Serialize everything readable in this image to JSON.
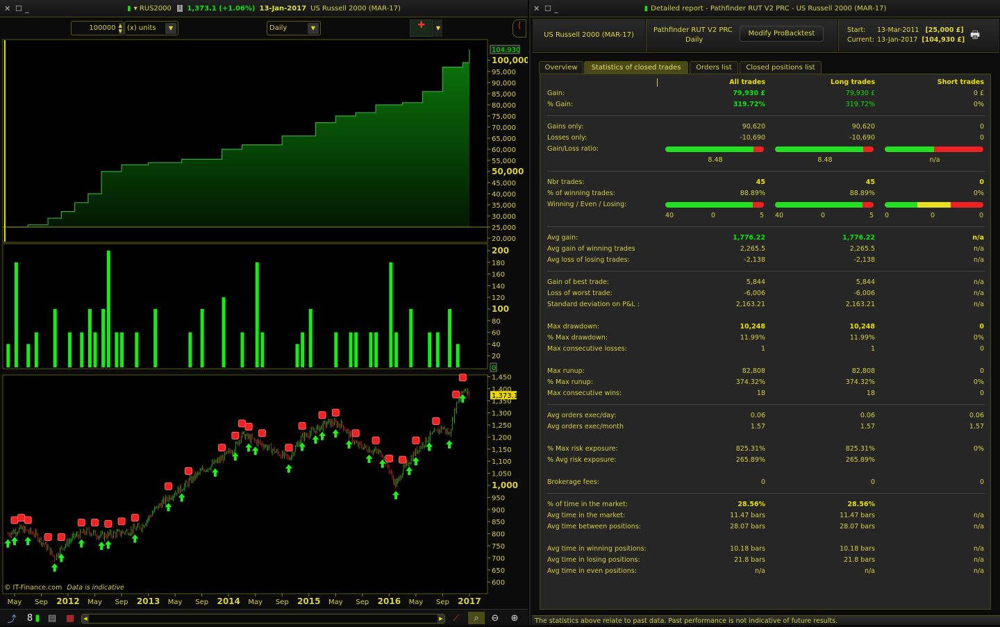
{
  "left_window": {
    "symbol": "RUS2000",
    "price_change": "1,373.1 (+1.06%)",
    "date": "13-Jan-2017",
    "instrument": "US Russell 2000 (MAR-17)",
    "quantity": "100000",
    "units": "(x) units",
    "period": "Daily",
    "copyright": "© IT-Finance.com",
    "disclaimer": "Data is indicative"
  },
  "equity_axis": {
    "ticks": [
      "20,000",
      "25,000",
      "30,000",
      "35,000",
      "40,000",
      "45,000",
      "50,000",
      "55,000",
      "60,000",
      "65,000",
      "70,000",
      "75,000",
      "80,000",
      "85,000",
      "90,000",
      "95,000",
      "100,000"
    ],
    "tick_values": [
      20000,
      25000,
      30000,
      35000,
      40000,
      45000,
      50000,
      55000,
      60000,
      65000,
      70000,
      75000,
      80000,
      85000,
      90000,
      95000,
      100000
    ],
    "current_label": "104,930",
    "current_value": 104930
  },
  "hist_axis": {
    "ticks": [
      "20",
      "40",
      "60",
      "80",
      "100",
      "120",
      "140",
      "160",
      "180",
      "200"
    ],
    "tick_values": [
      20,
      40,
      60,
      80,
      100,
      120,
      140,
      160,
      180,
      200
    ],
    "zero_label": "0"
  },
  "price_axis": {
    "ticks": [
      "600",
      "650",
      "700",
      "750",
      "800",
      "850",
      "900",
      "950",
      "1,000",
      "1,050",
      "1,100",
      "1,150",
      "1,200",
      "1,250",
      "1,300",
      "1,350",
      "1,400",
      "1,450"
    ],
    "tick_values": [
      600,
      650,
      700,
      750,
      800,
      850,
      900,
      950,
      1000,
      1050,
      1100,
      1150,
      1200,
      1250,
      1300,
      1350,
      1400,
      1450
    ],
    "current_label": "1,373.1",
    "current_value": 1373.1
  },
  "date_axis": [
    "May",
    "Sep",
    "2012",
    "May",
    "Sep",
    "2013",
    "May",
    "Sep",
    "2014",
    "May",
    "Sep",
    "2015",
    "May",
    "Sep",
    "2016",
    "May",
    "Sep",
    "2017"
  ],
  "chart_data": {
    "equity": {
      "type": "area",
      "dates": [
        "2011-04",
        "2011-07",
        "2011-10",
        "2011-12",
        "2012-02",
        "2012-04",
        "2012-06",
        "2012-09",
        "2013-01",
        "2013-06",
        "2013-12",
        "2014-03",
        "2014-09",
        "2015-02",
        "2015-05",
        "2015-08",
        "2015-11",
        "2016-03",
        "2016-06",
        "2016-09",
        "2016-12",
        "2017-01"
      ],
      "values": [
        25000,
        26000,
        29000,
        32000,
        36000,
        40000,
        50000,
        53000,
        54000,
        55500,
        60000,
        62000,
        66000,
        72000,
        75000,
        76500,
        80000,
        81000,
        86000,
        97000,
        99000,
        104930
      ]
    },
    "histogram": {
      "type": "bar",
      "dates": [
        "2011-04",
        "2011-05",
        "2011-07",
        "2011-08",
        "2011-11",
        "2012-01",
        "2012-03",
        "2012-04",
        "2012-05",
        "2012-06",
        "2012-07",
        "2012-08",
        "2012-09",
        "2012-11",
        "2013-02",
        "2013-07",
        "2013-09",
        "2013-12",
        "2014-03",
        "2014-05",
        "2014-06",
        "2014-11",
        "2014-12",
        "2015-01",
        "2015-05",
        "2015-07",
        "2015-08",
        "2015-10",
        "2015-11",
        "2016-01",
        "2016-02",
        "2016-04",
        "2016-07",
        "2016-08",
        "2016-10",
        "2016-11"
      ],
      "values": [
        40,
        180,
        40,
        60,
        100,
        60,
        60,
        100,
        60,
        100,
        200,
        60,
        60,
        60,
        100,
        60,
        100,
        120,
        60,
        180,
        60,
        40,
        60,
        100,
        60,
        60,
        60,
        60,
        60,
        180,
        60,
        100,
        60,
        60,
        100,
        40
      ]
    },
    "price": {
      "type": "candlestick",
      "dates": [
        "2011-04",
        "2011-06",
        "2011-08",
        "2011-10",
        "2011-11",
        "2011-12",
        "2012-02",
        "2012-04",
        "2012-06",
        "2012-08",
        "2012-10",
        "2012-12",
        "2013-02",
        "2013-04",
        "2013-06",
        "2013-09",
        "2013-12",
        "2014-02",
        "2014-03",
        "2014-06",
        "2014-08",
        "2014-10",
        "2014-12",
        "2015-02",
        "2015-04",
        "2015-06",
        "2015-08",
        "2015-10",
        "2015-12",
        "2016-02",
        "2016-03",
        "2016-05",
        "2016-07",
        "2016-09",
        "2016-10",
        "2016-11",
        "2016-12",
        "2017-01"
      ],
      "closes": [
        800,
        820,
        800,
        740,
        700,
        740,
        790,
        810,
        790,
        800,
        810,
        830,
        900,
        950,
        990,
        1060,
        1110,
        1160,
        1210,
        1170,
        1140,
        1110,
        1200,
        1230,
        1260,
        1250,
        1170,
        1150,
        1130,
        1000,
        1060,
        1140,
        1200,
        1240,
        1210,
        1330,
        1400,
        1373
      ]
    },
    "entries": [
      "2011-04",
      "2011-05",
      "2011-07",
      "2011-11",
      "2011-12",
      "2012-03",
      "2012-06",
      "2012-07",
      "2012-11",
      "2013-04",
      "2013-06",
      "2013-11",
      "2014-02",
      "2014-04",
      "2014-05",
      "2014-10",
      "2014-12",
      "2015-02",
      "2015-03",
      "2015-05",
      "2015-07",
      "2015-10",
      "2015-12",
      "2016-02",
      "2016-04",
      "2016-05",
      "2016-07",
      "2016-10",
      "2016-12"
    ],
    "exits": [
      "2011-05",
      "2011-06",
      "2011-07",
      "2011-10",
      "2011-12",
      "2012-03",
      "2012-05",
      "2012-07",
      "2012-09",
      "2012-11",
      "2013-04",
      "2013-07",
      "2013-12",
      "2014-02",
      "2014-03",
      "2014-04",
      "2014-06",
      "2014-10",
      "2014-12",
      "2015-03",
      "2015-05",
      "2015-08",
      "2015-11",
      "2016-01",
      "2016-03",
      "2016-05",
      "2016-08",
      "2016-11",
      "2016-12"
    ]
  },
  "right_window": {
    "title": "Detailed report - Pathfinder RUT V2 PRC - US Russell 2000 (MAR-17)",
    "instrument": "US Russell 2000 (MAR-17)",
    "strategy": "Pathfinder RUT V2 PRC",
    "period": "Daily",
    "modify_button": "Modify ProBacktest",
    "start_label": "Start:",
    "start_date": "13-Mar-2011",
    "start_capital": "[25,000 £]",
    "current_label": "Current:",
    "current_date": "13-Jan-2017",
    "current_capital": "[104,930 £]",
    "tabs": [
      "Overview",
      "Statistics of closed trades",
      "Orders list",
      "Closed positions list"
    ],
    "footer": "The statistics above relate to past data. Past performance is not indicative of future results."
  },
  "stats": {
    "headers": [
      "All trades",
      "Long trades",
      "Short trades"
    ],
    "slots": [
      {
        "t": "row",
        "label": "Gain:",
        "values": [
          "79,930 £",
          "79,930 £",
          "0 £"
        ],
        "styles": [
          "green",
          "greenn",
          ""
        ]
      },
      {
        "t": "row",
        "label": "% Gain:",
        "values": [
          "319.72%",
          "319.72%",
          "0%"
        ],
        "styles": [
          "green",
          "greenn",
          ""
        ]
      },
      {
        "t": "line"
      },
      {
        "t": "row",
        "label": "Gains only:",
        "values": [
          "90,620",
          "90,620",
          "0"
        ]
      },
      {
        "t": "row",
        "label": "Losses only:",
        "values": [
          "-10,690",
          "-10,690",
          "0"
        ]
      },
      {
        "t": "bar",
        "label": "Gain/Loss ratio:",
        "bars": [
          [
            {
              "c": "#22e022",
              "f": 0.895
            },
            {
              "c": "#ee2222",
              "f": 0.105
            }
          ],
          [
            {
              "c": "#22e022",
              "f": 0.895
            },
            {
              "c": "#ee2222",
              "f": 0.105
            }
          ],
          [
            {
              "c": "#22e022",
              "f": 0.5
            },
            {
              "c": "#ee2222",
              "f": 0.5
            }
          ]
        ]
      },
      {
        "t": "center",
        "values": [
          "8.48",
          "8.48",
          "n/a"
        ]
      },
      {
        "t": "line"
      },
      {
        "t": "row",
        "label": "Nbr trades:",
        "values": [
          "45",
          "45",
          "0"
        ],
        "styles": [
          "bold",
          "bold",
          "bold"
        ]
      },
      {
        "t": "row",
        "label": "% of winning trades:",
        "values": [
          "88.89%",
          "88.89%",
          "0%"
        ]
      },
      {
        "t": "bar",
        "label": "Winning / Even / Losing:",
        "bars": [
          [
            {
              "c": "#22e022",
              "f": 0.889
            },
            {
              "c": "#ee2222",
              "f": 0.111
            }
          ],
          [
            {
              "c": "#22e022",
              "f": 0.889
            },
            {
              "c": "#ee2222",
              "f": 0.111
            }
          ],
          [
            {
              "c": "#22e022",
              "f": 0.333
            },
            {
              "c": "#e8e020",
              "f": 0.334
            },
            {
              "c": "#ee2222",
              "f": 0.333
            }
          ]
        ]
      },
      {
        "t": "counts",
        "values": [
          [
            "40",
            "0",
            "5"
          ],
          [
            "40",
            "0",
            "5"
          ],
          [
            "0",
            "0",
            "0"
          ]
        ]
      },
      {
        "t": "line"
      },
      {
        "t": "row",
        "label": "Avg gain:",
        "values": [
          "1,776.22",
          "1,776.22",
          "n/a"
        ],
        "styles": [
          "green",
          "green",
          "bold"
        ]
      },
      {
        "t": "row",
        "label": "Avg gain of winning trades",
        "values": [
          "2,265.5",
          "2,265.5",
          "n/a"
        ]
      },
      {
        "t": "row",
        "label": "Avg loss of losing trades:",
        "values": [
          "-2,138",
          "-2,138",
          "n/a"
        ]
      },
      {
        "t": "line"
      },
      {
        "t": "row",
        "label": "Gain of best trade:",
        "values": [
          "5,844",
          "5,844",
          "n/a"
        ]
      },
      {
        "t": "row",
        "label": "Loss of worst trade:",
        "values": [
          "-6,006",
          "-6,006",
          "n/a"
        ]
      },
      {
        "t": "row",
        "label": "Standard deviation on P&L :",
        "values": [
          "2,163.21",
          "2,163.21",
          "n/a"
        ]
      },
      {
        "t": "gap"
      },
      {
        "t": "row",
        "label": "Max drawdown:",
        "values": [
          "10,248",
          "10,248",
          "0"
        ],
        "styles": [
          "bold",
          "bold",
          "bold"
        ]
      },
      {
        "t": "row",
        "label": "% Max drawdown:",
        "values": [
          "11.99%",
          "11.99%",
          "0%"
        ]
      },
      {
        "t": "row",
        "label": "Max consecutive losses:",
        "values": [
          "1",
          "1",
          "0"
        ]
      },
      {
        "t": "gap"
      },
      {
        "t": "row",
        "label": "Max runup:",
        "values": [
          "82,808",
          "82,808",
          "0"
        ]
      },
      {
        "t": "row",
        "label": "% Max runup:",
        "values": [
          "374.32%",
          "374.32%",
          "0%"
        ]
      },
      {
        "t": "row",
        "label": "Max consecutive wins:",
        "values": [
          "18",
          "18",
          "0"
        ]
      },
      {
        "t": "line"
      },
      {
        "t": "row",
        "label": "Avg orders exec/day:",
        "values": [
          "0.06",
          "0.06",
          "0.06"
        ]
      },
      {
        "t": "row",
        "label": "Avg orders exec/month",
        "values": [
          "1.57",
          "1.57",
          "1.57"
        ]
      },
      {
        "t": "gap"
      },
      {
        "t": "row",
        "label": "% Max risk exposure:",
        "values": [
          "825.31%",
          "825.31%",
          "0%"
        ]
      },
      {
        "t": "row",
        "label": "% Avg risk exposure:",
        "values": [
          "265.89%",
          "265.89%",
          ""
        ]
      },
      {
        "t": "gap"
      },
      {
        "t": "row",
        "label": "Brokerage fees:",
        "values": [
          "0",
          "0",
          "0"
        ]
      },
      {
        "t": "line"
      },
      {
        "t": "row",
        "label": "% of time in the market:",
        "values": [
          "28.56%",
          "28.56%",
          ""
        ],
        "styles": [
          "bold",
          "bold",
          ""
        ]
      },
      {
        "t": "row",
        "label": "Avg time in the market:",
        "values": [
          "11.47 bars",
          "11.47 bars",
          "n/a"
        ]
      },
      {
        "t": "row",
        "label": "Avg time between positions:",
        "values": [
          "28.07 bars",
          "28.07 bars",
          "n/a"
        ]
      },
      {
        "t": "gap"
      },
      {
        "t": "row",
        "label": "Avg time in winning positions:",
        "values": [
          "10.18 bars",
          "10.18 bars",
          "n/a"
        ]
      },
      {
        "t": "row",
        "label": "Avg time in losing positions:",
        "values": [
          "21.8 bars",
          "21.8 bars",
          "n/a"
        ]
      },
      {
        "t": "row",
        "label": "Avg time in even positions:",
        "values": [
          "n/a",
          "n/a",
          "n/a"
        ]
      }
    ]
  },
  "colors": {
    "accent": "#d8d040",
    "gain": "#10e010",
    "loss": "#ee2222",
    "equity_fill": "#0a6a0a"
  }
}
